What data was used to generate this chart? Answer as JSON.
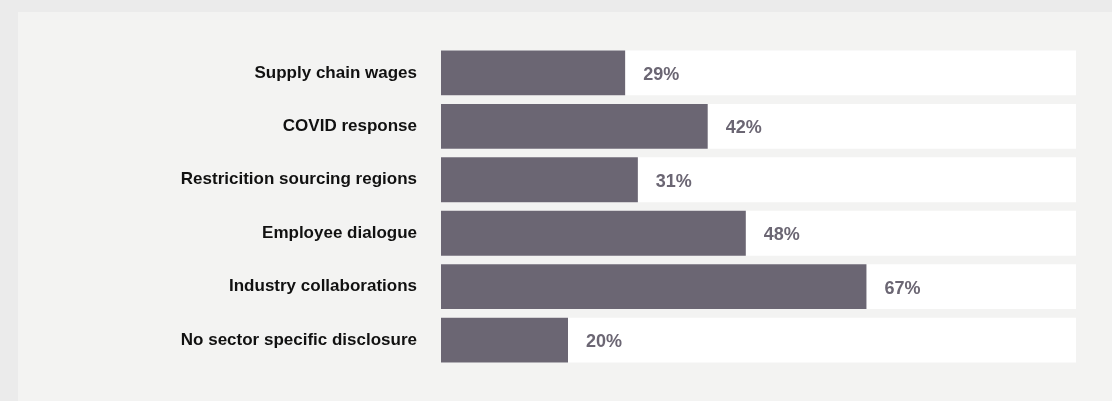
{
  "chart_data": {
    "type": "bar",
    "orientation": "horizontal",
    "categories": [
      "Supply chain wages",
      "COVID response",
      "Restricition sourcing regions",
      "Employee dialogue",
      "Industry collaborations",
      "No sector specific disclosure"
    ],
    "values": [
      29,
      42,
      31,
      48,
      67,
      20
    ],
    "value_labels": [
      "29%",
      "42%",
      "31%",
      "48%",
      "67%",
      "20%"
    ],
    "color": "#6b6673",
    "xlim": [
      0,
      100
    ],
    "tick_labels": "y"
  }
}
